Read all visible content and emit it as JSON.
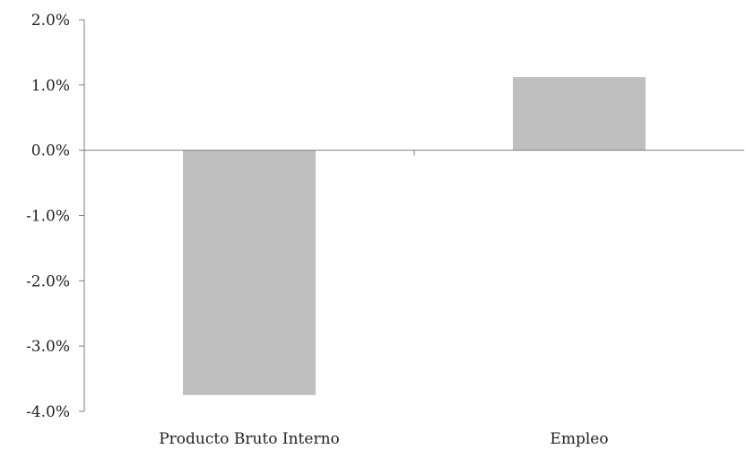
{
  "chart_data": {
    "type": "bar",
    "categories": [
      "Producto Bruto Interno",
      "Empleo"
    ],
    "values": [
      -3.75,
      1.12
    ],
    "title": "",
    "xlabel": "",
    "ylabel": "",
    "ylim": [
      -4.0,
      2.0
    ],
    "ytick_step": 1.0,
    "ytick_labels": [
      "2.0%",
      "1.0%",
      "0.0%",
      "-1.0%",
      "-2.0%",
      "-3.0%",
      "-4.0%"
    ],
    "unit": "%",
    "grid": false,
    "legend": "none",
    "colors": {
      "bar": "#bfbfbf",
      "axis": "#7f7f7f",
      "text": "#222222"
    }
  }
}
